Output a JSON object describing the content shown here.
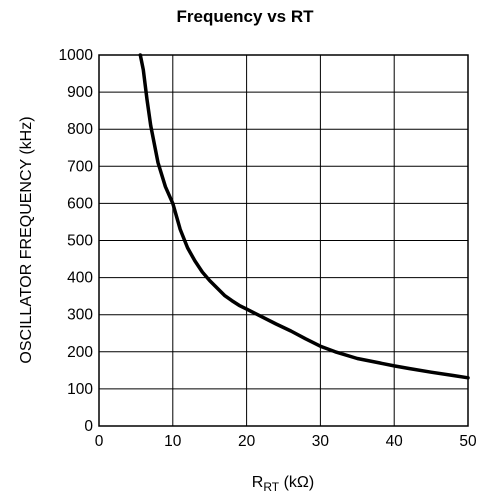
{
  "chart_data": {
    "type": "line",
    "title": "Frequency vs RT",
    "xlabel_main": "R",
    "xlabel_sub": "RT",
    "xlabel_unit": " (kΩ)",
    "ylabel": "OSCILLATOR FREQUENCY (kHz)",
    "xlim": [
      0,
      50
    ],
    "ylim": [
      0,
      1000
    ],
    "grid": true,
    "x_ticks": [
      "0",
      "10",
      "20",
      "30",
      "40",
      "50"
    ],
    "y_ticks": [
      "0",
      "100",
      "200",
      "300",
      "400",
      "500",
      "600",
      "700",
      "800",
      "900",
      "1000"
    ],
    "series": [
      {
        "color": "#000000",
        "x": [
          5.6,
          6.0,
          6.5,
          7.0,
          8.0,
          9.0,
          10.0,
          11.0,
          12.0,
          13.0,
          14.0,
          15.0,
          16.0,
          17.0,
          18.0,
          19.0,
          20.0,
          22.0,
          24.0,
          26.0,
          28.0,
          30.0,
          32.0,
          35.0,
          38.0,
          40.0,
          42.0,
          45.0,
          48.0,
          50.0
        ],
        "y": [
          1000,
          960,
          880,
          810,
          710,
          645,
          600,
          530,
          480,
          445,
          415,
          392,
          372,
          352,
          338,
          325,
          315,
          295,
          275,
          256,
          235,
          215,
          200,
          182,
          170,
          162,
          155,
          145,
          136,
          130
        ]
      }
    ]
  }
}
